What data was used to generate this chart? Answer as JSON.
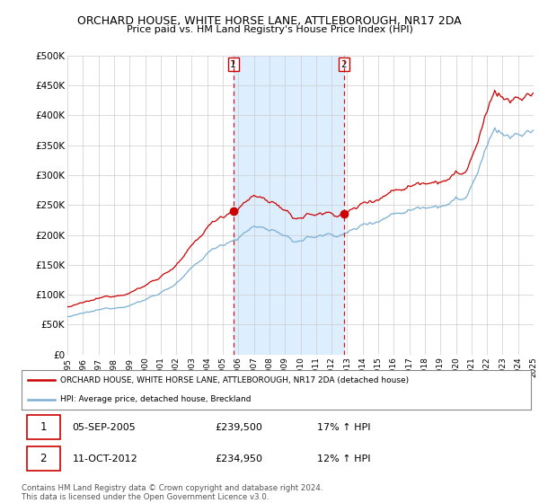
{
  "title": "ORCHARD HOUSE, WHITE HORSE LANE, ATTLEBOROUGH, NR17 2DA",
  "subtitle": "Price paid vs. HM Land Registry's House Price Index (HPI)",
  "ylim": [
    0,
    500000
  ],
  "yticks": [
    0,
    50000,
    100000,
    150000,
    200000,
    250000,
    300000,
    350000,
    400000,
    450000,
    500000
  ],
  "ytick_labels": [
    "£0",
    "£50K",
    "£100K",
    "£150K",
    "£200K",
    "£250K",
    "£300K",
    "£350K",
    "£400K",
    "£450K",
    "£500K"
  ],
  "sale1_date": 2005.67,
  "sale1_price": 239500,
  "sale1_label": "1",
  "sale1_text": "05-SEP-2005",
  "sale1_amount": "£239,500",
  "sale1_hpi": "17% ↑ HPI",
  "sale2_date": 2012.78,
  "sale2_price": 234950,
  "sale2_label": "2",
  "sale2_text": "11-OCT-2012",
  "sale2_amount": "£234,950",
  "sale2_hpi": "12% ↑ HPI",
  "hpi_line_color": "#7bafd4",
  "price_line_color": "#cc0000",
  "bg_color": "#ffffff",
  "shade_color": "#ddeeff",
  "vline_color": "#cc0000",
  "grid_color": "#cccccc",
  "legend_label_red": "ORCHARD HOUSE, WHITE HORSE LANE, ATTLEBOROUGH, NR17 2DA (detached house)",
  "legend_label_blue": "HPI: Average price, detached house, Breckland",
  "footnote": "Contains HM Land Registry data © Crown copyright and database right 2024.\nThis data is licensed under the Open Government Licence v3.0.",
  "xstart": 1995,
  "xend": 2025
}
